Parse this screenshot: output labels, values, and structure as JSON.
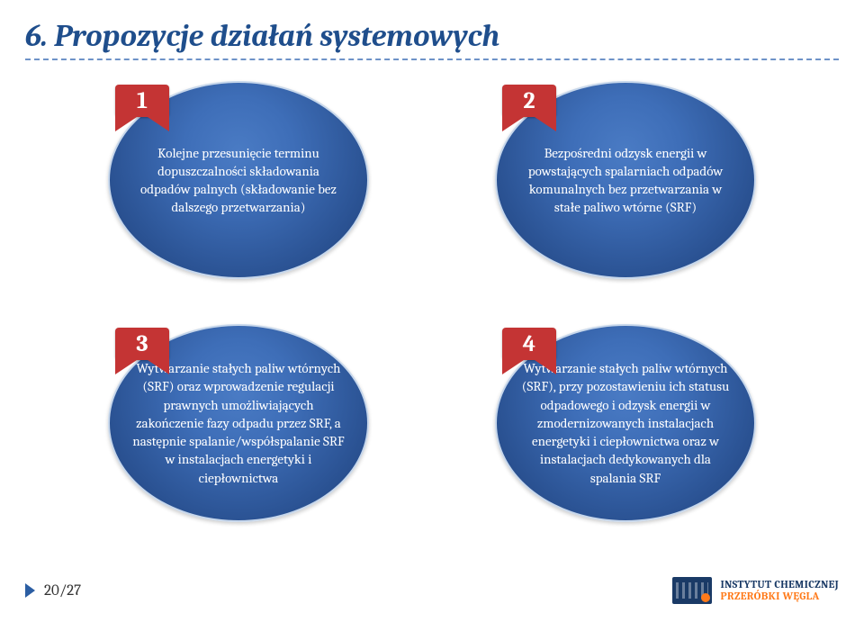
{
  "title": "6. Propozycje działań systemowych",
  "bubbles": {
    "b1": {
      "num": "1",
      "text": "Kolejne przesunięcie terminu dopuszczalności składowania odpadów palnych (składowanie bez dalszego przetwarzania)"
    },
    "b2": {
      "num": "2",
      "text": "Bezpośredni odzysk energii w powstających spalarniach odpadów komunalnych bez przetwarzania w stałe paliwo wtórne (SRF)"
    },
    "b3": {
      "num": "3",
      "text": "Wytwarzanie stałych paliw wtórnych (SRF) oraz wprowadzenie regulacji prawnych umożliwiających zakończenie fazy odpadu przez SRF, a następnie spalanie/współspalanie SRF w instalacjach energetyki i ciepłownictwa"
    },
    "b4": {
      "num": "4",
      "text": "Wytwarzanie stałych paliw wtórnych (SRF), przy pozostawieniu ich statusu odpadowego i odzysk energii w zmodernizowanych instalacjach energetyki i ciepłownictwa oraz w instalacjach dedykowanych dla spalania SRF"
    }
  },
  "footer": {
    "page": "20/27",
    "logo_line1": "INSTYTUT CHEMICZNEJ",
    "logo_line2": "PRZERÓBKI WĘGLA"
  },
  "colors": {
    "title": "#1f4e8c",
    "bubble_gradient_top": "#4a7bc4",
    "bubble_gradient_bottom": "#1e3f77",
    "ribbon": "#c43434",
    "logo_dark": "#1a3a66",
    "logo_orange": "#ff7a1a"
  }
}
